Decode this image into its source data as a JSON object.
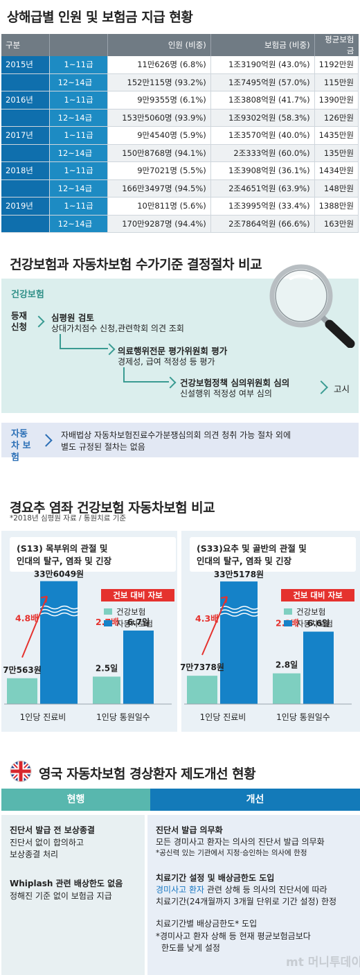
{
  "s1": {
    "title": "상해급별 인원 및 보험금 지급 현황",
    "headers": [
      "구분",
      "",
      "인원 (비중)",
      "보험금 (비중)",
      "평균보험금"
    ],
    "rows": [
      {
        "year": "2015년",
        "grade": "1~11급",
        "people": "11만626명 (6.8%)",
        "amount": "1조3190억원 (43.0%)",
        "avg": "1192만원"
      },
      {
        "year": "",
        "grade": "12~14급",
        "people": "152만115명 (93.2%)",
        "amount": "1조7495억원 (57.0%)",
        "avg": "115만원"
      },
      {
        "year": "2016년",
        "grade": "1~11급",
        "people": "9만9355명 (6.1%)",
        "amount": "1조3808억원 (41.7%)",
        "avg": "1390만원"
      },
      {
        "year": "",
        "grade": "12~14급",
        "people": "153만5060명 (93.9%)",
        "amount": "1조9302억원 (58.3%)",
        "avg": "126만원"
      },
      {
        "year": "2017년",
        "grade": "1~11급",
        "people": "9만4540명 (5.9%)",
        "amount": "1조3570억원 (40.0%)",
        "avg": "1435만원"
      },
      {
        "year": "",
        "grade": "12~14급",
        "people": "150만8768명 (94.1%)",
        "amount": "2조333억원 (60.0%)",
        "avg": "135만원"
      },
      {
        "year": "2018년",
        "grade": "1~11급",
        "people": "9만7021명 (5.5%)",
        "amount": "1조3908억원 (36.1%)",
        "avg": "1434만원"
      },
      {
        "year": "",
        "grade": "12~14급",
        "people": "166만3497명 (94.5%)",
        "amount": "2조4651억원 (63.9%)",
        "avg": "148만원"
      },
      {
        "year": "2019년",
        "grade": "1~11급",
        "people": "10만811명 (5.6%)",
        "amount": "1조3995억원 (33.4%)",
        "avg": "1388만원"
      },
      {
        "year": "",
        "grade": "12~14급",
        "people": "170만9287명 (94.4%)",
        "amount": "2조7864억원 (66.6%)",
        "avg": "163만원"
      }
    ]
  },
  "s2": {
    "title": "건강보험과 자동차보험 수가기준 결정절차 비교",
    "health_label": "건강보험",
    "step0": "등재 신청",
    "step1_title": "심평원 검토",
    "step1_desc": "상대가치점수 신청,관련학회 의견 조회",
    "step2_title": "의료행위전문 평가위원회 평가",
    "step2_desc": "경제성, 급여 적정성 등 평가",
    "step3_title": "건강보험정책 심의위원회 심의",
    "step3_desc": "신설행위 적정성 여부 심의",
    "step4": "고시",
    "auto_label": "자동차 보험",
    "auto_desc1": "자배법상 자동차보험진료수가분쟁심의회 의견 청취 가능 절차 외에",
    "auto_desc2": "별도 규정된 절차는 없음"
  },
  "s3": {
    "title": "경요추 염좌 건강보험 자동차보험 비교",
    "note": "*2018년 심평원 자료 / 통원치료 기준",
    "legend_badge": "건보 대비 자보",
    "legend_health": "건강보험",
    "legend_auto": "자동차보험",
    "colors": {
      "health": "#7ecfc0",
      "auto": "#1582c8",
      "ratio": "#e5322e",
      "badge": "#e5322e"
    }
  },
  "chart_data": [
    {
      "type": "bar",
      "title": "(S13) 목부위의 관절 및 인대의 탈구, 염좌 및 긴장",
      "categories": [
        "1인당 진료비",
        "1인당 통원일수"
      ],
      "series": [
        {
          "name": "건강보험",
          "values": [
            70563,
            2.5
          ],
          "labels": [
            "7만563원",
            "2.5일"
          ]
        },
        {
          "name": "자동차보험",
          "values": [
            336049,
            6.7
          ],
          "labels": [
            "33만6049원",
            "6.7일"
          ]
        }
      ],
      "ratios": [
        "4.8배",
        "2.7배"
      ]
    },
    {
      "type": "bar",
      "title": "(S33)요추 및 골반의 관절 및 인대의 탈구, 염좌 및 긴장",
      "categories": [
        "1인당 진료비",
        "1인당 통원일수"
      ],
      "series": [
        {
          "name": "건강보험",
          "values": [
            77378,
            2.8
          ],
          "labels": [
            "7만7378원",
            "2.8일"
          ]
        },
        {
          "name": "자동차보험",
          "values": [
            335178,
            6.6
          ],
          "labels": [
            "33만5178원",
            "6.6일"
          ]
        }
      ],
      "ratios": [
        "4.3배",
        "2.3배"
      ]
    }
  ],
  "s4": {
    "title": "영국 자동차보험 경상환자 제도개선 현황",
    "col_current": "현행",
    "col_improved": "개선",
    "cur1_title": "진단서 발급 전 보상종결",
    "cur1_desc1": "진단서 없이 합의하고",
    "cur1_desc2": "보상종결 처리",
    "cur2_title": "Whiplash 관련 배상한도 없음",
    "cur2_desc": "정해진 기준 없이 보험금 지급",
    "imp1_title": "진단서 발급 의무화",
    "imp1_desc": "모든 경미사고 환자는 의사의 진단서 발급 의무화",
    "imp1_note": "*공신력 있는 기관에서 지정·승인하는 의사에 한정",
    "imp2_title": "치료기간 설정 및 배상금한도 도입",
    "imp2_highlight": "경미사고 환자",
    "imp2_desc1": "관련 상해 등 의사의 진단서에 따라",
    "imp2_desc2": "치료기간(24개월까지 3개월 단위로 기간 설정) 한정",
    "imp3_title": "치료기간별 배상금한도* 도입",
    "imp3_note1": "*경미사고 환자 상해 등 현재 평균보험금보다",
    "imp3_note2": "한도를 낮게 설정",
    "watermark": "mt 머니투데이"
  }
}
